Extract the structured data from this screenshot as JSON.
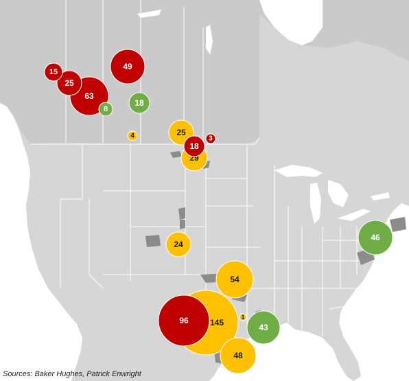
{
  "source_note": "Sources: Baker Hughes, Patrick Enwright",
  "colors": {
    "land": "#d6d6d6",
    "canada": "#cacaca",
    "water": "#ffffff",
    "border": "#ffffff",
    "basin": "#8c8c8c",
    "red": "#c00000",
    "yellow": "#ffc000",
    "green": "#70ad47"
  },
  "bubbles": [
    {
      "id": "bubble-15",
      "label": "15",
      "value": 15,
      "color": "red"
    },
    {
      "id": "bubble-25-west",
      "label": "25",
      "value": 25,
      "color": "red"
    },
    {
      "id": "bubble-63",
      "label": "63",
      "value": 63,
      "color": "red"
    },
    {
      "id": "bubble-8",
      "label": "8",
      "value": 8,
      "color": "green"
    },
    {
      "id": "bubble-49",
      "label": "49",
      "value": 49,
      "color": "red"
    },
    {
      "id": "bubble-18-green",
      "label": "18",
      "value": 18,
      "color": "green"
    },
    {
      "id": "bubble-4",
      "label": "4",
      "value": 4,
      "color": "yellow"
    },
    {
      "id": "bubble-25-east",
      "label": "25",
      "value": 25,
      "color": "yellow"
    },
    {
      "id": "bubble-3",
      "label": "3",
      "value": 3,
      "color": "red"
    },
    {
      "id": "bubble-29",
      "label": "29",
      "value": 29,
      "color": "yellow"
    },
    {
      "id": "bubble-18-red",
      "label": "18",
      "value": 18,
      "color": "red"
    },
    {
      "id": "bubble-24",
      "label": "24",
      "value": 24,
      "color": "yellow"
    },
    {
      "id": "bubble-46",
      "label": "46",
      "value": 46,
      "color": "green"
    },
    {
      "id": "bubble-54",
      "label": "54",
      "value": 54,
      "color": "yellow"
    },
    {
      "id": "bubble-145",
      "label": "145",
      "value": 145,
      "color": "yellow"
    },
    {
      "id": "bubble-96",
      "label": "96",
      "value": 96,
      "color": "red"
    },
    {
      "id": "bubble-1",
      "label": "1",
      "value": 1,
      "color": "yellow"
    },
    {
      "id": "bubble-43",
      "label": "43",
      "value": 43,
      "color": "green"
    },
    {
      "id": "bubble-48",
      "label": "48",
      "value": 48,
      "color": "yellow"
    }
  ]
}
